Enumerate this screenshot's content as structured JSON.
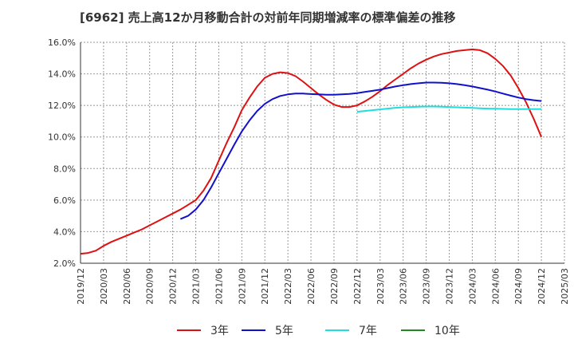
{
  "chart_data": {
    "type": "line",
    "title": "[6962]  売上高12か月移動合計の対前年同期増減率の標準偏差の推移",
    "xlabel": "",
    "ylabel": "",
    "x_ticks": [
      "2019/12",
      "2020/03",
      "2020/06",
      "2020/09",
      "2020/12",
      "2021/03",
      "2021/06",
      "2021/09",
      "2021/12",
      "2022/03",
      "2022/06",
      "2022/09",
      "2022/12",
      "2023/03",
      "2023/06",
      "2023/09",
      "2023/12",
      "2024/03",
      "2024/06",
      "2024/09",
      "2024/12",
      "2025/03"
    ],
    "y_ticks": [
      "2.0%",
      "4.0%",
      "6.0%",
      "8.0%",
      "10.0%",
      "12.0%",
      "14.0%",
      "16.0%"
    ],
    "ylim": [
      2.0,
      16.0
    ],
    "y_unit": "%",
    "grid": true,
    "legend_position": "bottom",
    "series": [
      {
        "name": "3年",
        "color": "#dd1111",
        "x": [
          "2019/12",
          "2020/01",
          "2020/02",
          "2020/03",
          "2020/04",
          "2020/05",
          "2020/06",
          "2020/07",
          "2020/08",
          "2020/09",
          "2020/10",
          "2020/11",
          "2020/12",
          "2021/01",
          "2021/02",
          "2021/03",
          "2021/04",
          "2021/05",
          "2021/06",
          "2021/07",
          "2021/08",
          "2021/09",
          "2021/10",
          "2021/11",
          "2021/12",
          "2022/01",
          "2022/02",
          "2022/03",
          "2022/04",
          "2022/05",
          "2022/06",
          "2022/07",
          "2022/08",
          "2022/09",
          "2022/10",
          "2022/11",
          "2022/12",
          "2023/01",
          "2023/02",
          "2023/03",
          "2023/04",
          "2023/05",
          "2023/06",
          "2023/07",
          "2023/08",
          "2023/09",
          "2023/10",
          "2023/11",
          "2023/12",
          "2024/01",
          "2024/02",
          "2024/03",
          "2024/04",
          "2024/05",
          "2024/06",
          "2024/07",
          "2024/08",
          "2024/09",
          "2024/10",
          "2024/11",
          "2024/12"
        ],
        "values": [
          2.6,
          2.65,
          2.8,
          3.1,
          3.35,
          3.55,
          3.75,
          3.95,
          4.15,
          4.4,
          4.65,
          4.9,
          5.15,
          5.4,
          5.7,
          6.0,
          6.6,
          7.4,
          8.5,
          9.6,
          10.6,
          11.7,
          12.5,
          13.2,
          13.75,
          14.0,
          14.1,
          14.05,
          13.85,
          13.5,
          13.1,
          12.7,
          12.35,
          12.05,
          11.9,
          11.9,
          12.0,
          12.25,
          12.55,
          12.9,
          13.3,
          13.65,
          14.0,
          14.35,
          14.65,
          14.9,
          15.1,
          15.25,
          15.35,
          15.45,
          15.5,
          15.55,
          15.5,
          15.3,
          14.95,
          14.5,
          13.9,
          13.1,
          12.2,
          11.15,
          10.0
        ]
      },
      {
        "name": "5年",
        "color": "#1111cc",
        "x": [
          "2021/01",
          "2021/02",
          "2021/03",
          "2021/04",
          "2021/05",
          "2021/06",
          "2021/07",
          "2021/08",
          "2021/09",
          "2021/10",
          "2021/11",
          "2021/12",
          "2022/01",
          "2022/02",
          "2022/03",
          "2022/04",
          "2022/05",
          "2022/06",
          "2022/07",
          "2022/08",
          "2022/09",
          "2022/10",
          "2022/11",
          "2022/12",
          "2023/01",
          "2023/02",
          "2023/03",
          "2023/04",
          "2023/05",
          "2023/06",
          "2023/07",
          "2023/08",
          "2023/09",
          "2023/10",
          "2023/11",
          "2023/12",
          "2024/01",
          "2024/02",
          "2024/03",
          "2024/04",
          "2024/05",
          "2024/06",
          "2024/07",
          "2024/08",
          "2024/09",
          "2024/10",
          "2024/11",
          "2024/12"
        ],
        "values": [
          4.8,
          5.0,
          5.4,
          6.0,
          6.8,
          7.7,
          8.6,
          9.5,
          10.35,
          11.05,
          11.65,
          12.1,
          12.4,
          12.6,
          12.7,
          12.75,
          12.75,
          12.72,
          12.7,
          12.68,
          12.68,
          12.7,
          12.73,
          12.78,
          12.85,
          12.92,
          13.0,
          13.1,
          13.2,
          13.28,
          13.35,
          13.4,
          13.45,
          13.45,
          13.43,
          13.4,
          13.35,
          13.28,
          13.2,
          13.1,
          13.0,
          12.88,
          12.75,
          12.62,
          12.5,
          12.4,
          12.33,
          12.28
        ]
      },
      {
        "name": "7年",
        "color": "#22dddd",
        "x": [
          "2022/12",
          "2023/01",
          "2023/02",
          "2023/03",
          "2023/04",
          "2023/05",
          "2023/06",
          "2023/07",
          "2023/08",
          "2023/09",
          "2023/10",
          "2023/11",
          "2023/12",
          "2024/01",
          "2024/02",
          "2024/03",
          "2024/04",
          "2024/05",
          "2024/06",
          "2024/07",
          "2024/08",
          "2024/09",
          "2024/10",
          "2024/11",
          "2024/12"
        ],
        "values": [
          11.6,
          11.65,
          11.7,
          11.75,
          11.8,
          11.85,
          11.88,
          11.9,
          11.92,
          11.93,
          11.93,
          11.92,
          11.9,
          11.88,
          11.86,
          11.84,
          11.82,
          11.8,
          11.79,
          11.78,
          11.77,
          11.77,
          11.77,
          11.77,
          11.77
        ]
      },
      {
        "name": "10年",
        "color": "#228822",
        "x": [],
        "values": []
      }
    ]
  }
}
